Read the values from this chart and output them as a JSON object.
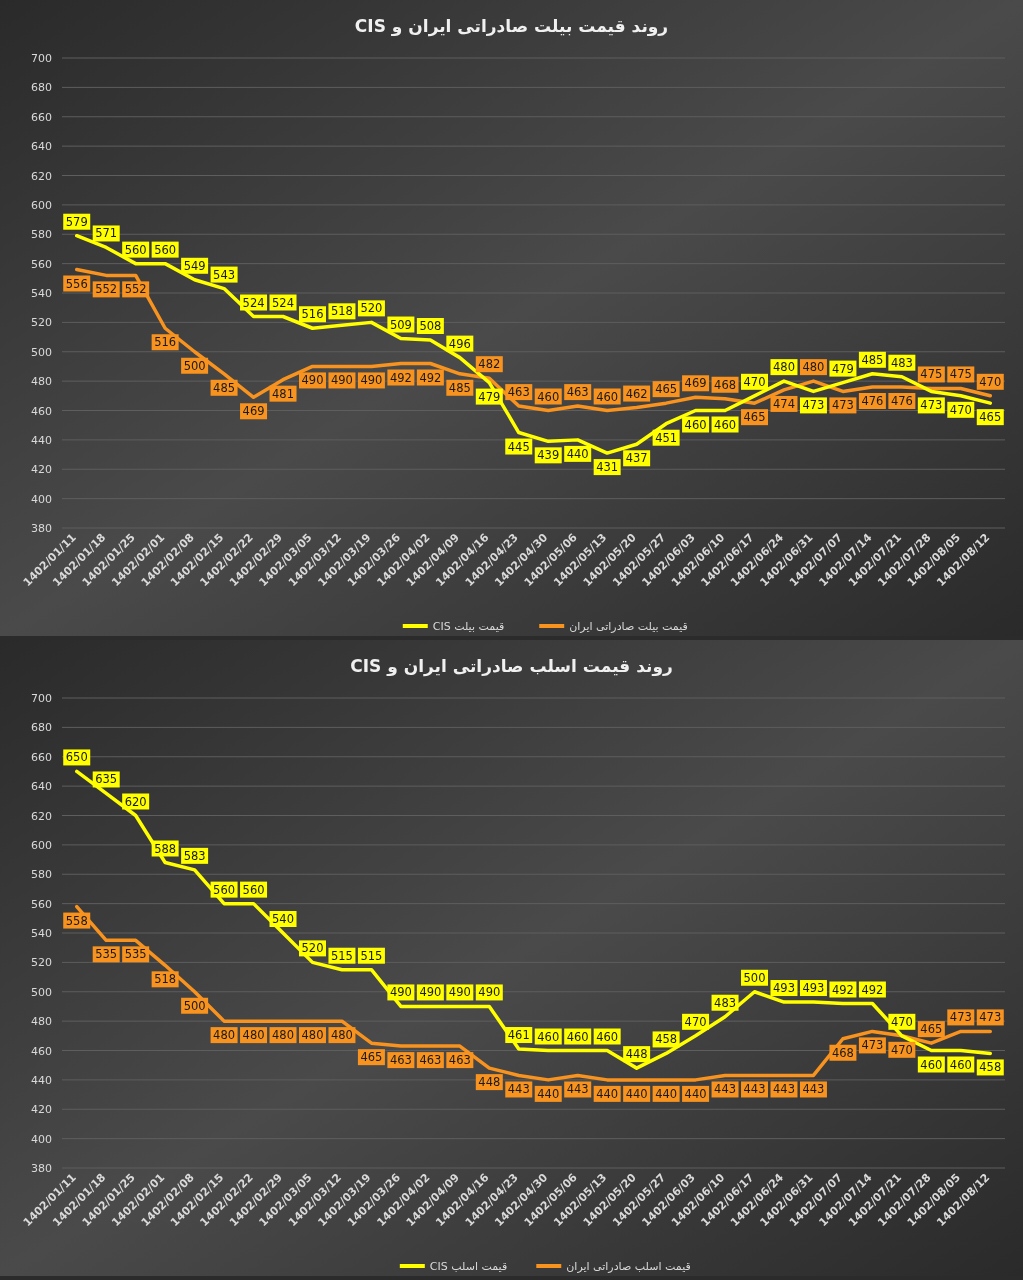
{
  "chart_data": [
    {
      "type": "line",
      "title": "روند قیمت بیلت صادراتی ایران و CIS",
      "categories": [
        "1402/01/11",
        "1402/01/18",
        "1402/01/25",
        "1402/02/01",
        "1402/02/08",
        "1402/02/15",
        "1402/02/22",
        "1402/02/29",
        "1402/03/05",
        "1402/03/12",
        "1402/03/19",
        "1402/03/26",
        "1402/04/02",
        "1402/04/09",
        "1402/04/16",
        "1402/04/23",
        "1402/04/30",
        "1402/05/06",
        "1402/05/13",
        "1402/05/20",
        "1402/05/27",
        "1402/06/03",
        "1402/06/10",
        "1402/06/17",
        "1402/06/24",
        "1402/06/31",
        "1402/07/07",
        "1402/07/14",
        "1402/07/21",
        "1402/07/28",
        "1402/08/05",
        "1402/08/12"
      ],
      "series": [
        {
          "name": "قیمت بیلت صادراتی ایران",
          "color": "#f7931e",
          "values": [
            556,
            552,
            552,
            516,
            500,
            485,
            469,
            481,
            490,
            490,
            490,
            492,
            492,
            485,
            482,
            463,
            460,
            463,
            460,
            462,
            465,
            469,
            468,
            465,
            474,
            480,
            473,
            476,
            476,
            475,
            475,
            470
          ]
        },
        {
          "name": "قیمت بیلت CIS",
          "color": "#ffff00",
          "values": [
            579,
            571,
            560,
            560,
            549,
            543,
            524,
            524,
            516,
            518,
            520,
            509,
            508,
            496,
            479,
            445,
            439,
            440,
            431,
            437,
            451,
            460,
            460,
            470,
            480,
            473,
            479,
            485,
            483,
            473,
            470,
            465
          ]
        }
      ],
      "ylim": [
        380,
        700
      ],
      "yticks": [
        380,
        400,
        420,
        440,
        460,
        480,
        500,
        520,
        540,
        560,
        580,
        600,
        620,
        640,
        660,
        680,
        700
      ],
      "grid": "y",
      "legend": "bottom",
      "data_labels": true
    },
    {
      "type": "line",
      "title": "روند قیمت اسلب صادراتی ایران و CIS",
      "categories": [
        "1402/01/11",
        "1402/01/18",
        "1402/01/25",
        "1402/02/01",
        "1402/02/08",
        "1402/02/15",
        "1402/02/22",
        "1402/02/29",
        "1402/03/05",
        "1402/03/12",
        "1402/03/19",
        "1402/03/26",
        "1402/04/02",
        "1402/04/09",
        "1402/04/16",
        "1402/04/23",
        "1402/04/30",
        "1402/05/06",
        "1402/05/13",
        "1402/05/20",
        "1402/05/27",
        "1402/06/03",
        "1402/06/10",
        "1402/06/17",
        "1402/06/24",
        "1402/06/31",
        "1402/07/07",
        "1402/07/14",
        "1402/07/21",
        "1402/07/28",
        "1402/08/05",
        "1402/08/12"
      ],
      "series": [
        {
          "name": "قیمت اسلب صادراتی ایران",
          "color": "#f7931e",
          "values": [
            558,
            535,
            535,
            518,
            500,
            480,
            480,
            480,
            480,
            480,
            465,
            463,
            463,
            463,
            448,
            443,
            440,
            443,
            440,
            440,
            440,
            440,
            443,
            443,
            443,
            443,
            468,
            473,
            470,
            465,
            473,
            473
          ]
        },
        {
          "name": "قیمت اسلب CIS",
          "color": "#ffff00",
          "values": [
            650,
            635,
            620,
            588,
            583,
            560,
            560,
            540,
            520,
            515,
            515,
            490,
            490,
            490,
            490,
            461,
            460,
            460,
            460,
            448,
            458,
            470,
            483,
            500,
            493,
            493,
            492,
            492,
            470,
            460,
            460,
            458
          ]
        }
      ],
      "ylim": [
        380,
        700
      ],
      "yticks": [
        380,
        400,
        420,
        440,
        460,
        480,
        500,
        520,
        540,
        560,
        580,
        600,
        620,
        640,
        660,
        680,
        700
      ],
      "grid": "y",
      "legend": "bottom",
      "data_labels": true
    }
  ]
}
